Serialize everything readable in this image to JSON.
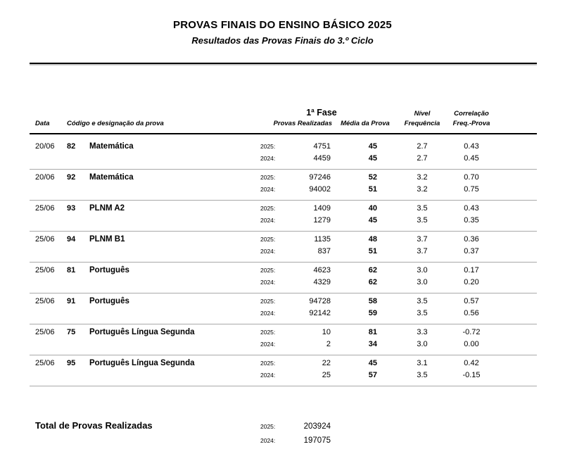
{
  "title": "PROVAS FINAIS DO ENSINO BÁSICO 2025",
  "subtitle": "Resultados das Provas Finais do 3.º Ciclo",
  "colors": {
    "text": "#000000",
    "separator": "#a9a9a9"
  },
  "table": {
    "headers": {
      "fase": "1ª Fase",
      "data": "Data",
      "codigo": "Código e designação da prova",
      "provas": "Provas Realizadas",
      "media": "Média da Prova",
      "nivel_line1": "Nível",
      "nivel_line2": "Frequência",
      "corr_line1": "Correlação",
      "corr_line2": "Freq.-Prova"
    },
    "rows": [
      {
        "date": "20/06",
        "code": "82",
        "name": "Matemática",
        "y2025": {
          "label": "2025:",
          "provas": "4751",
          "media": "45",
          "nivel": "2.7",
          "corr": "0.43"
        },
        "y2024": {
          "label": "2024:",
          "provas": "4459",
          "media": "45",
          "nivel": "2.7",
          "corr": "0.45"
        }
      },
      {
        "date": "20/06",
        "code": "92",
        "name": "Matemática",
        "y2025": {
          "label": "2025:",
          "provas": "97246",
          "media": "52",
          "nivel": "3.2",
          "corr": "0.70"
        },
        "y2024": {
          "label": "2024:",
          "provas": "94002",
          "media": "51",
          "nivel": "3.2",
          "corr": "0.75"
        }
      },
      {
        "date": "25/06",
        "code": "93",
        "name": "PLNM A2",
        "y2025": {
          "label": "2025:",
          "provas": "1409",
          "media": "40",
          "nivel": "3.5",
          "corr": "0.43"
        },
        "y2024": {
          "label": "2024:",
          "provas": "1279",
          "media": "45",
          "nivel": "3.5",
          "corr": "0.35"
        }
      },
      {
        "date": "25/06",
        "code": "94",
        "name": "PLNM B1",
        "y2025": {
          "label": "2025:",
          "provas": "1135",
          "media": "48",
          "nivel": "3.7",
          "corr": "0.36"
        },
        "y2024": {
          "label": "2024:",
          "provas": "837",
          "media": "51",
          "nivel": "3.7",
          "corr": "0.37"
        }
      },
      {
        "date": "25/06",
        "code": "81",
        "name": "Português",
        "y2025": {
          "label": "2025:",
          "provas": "4623",
          "media": "62",
          "nivel": "3.0",
          "corr": "0.17"
        },
        "y2024": {
          "label": "2024:",
          "provas": "4329",
          "media": "62",
          "nivel": "3.0",
          "corr": "0.20"
        }
      },
      {
        "date": "25/06",
        "code": "91",
        "name": "Português",
        "y2025": {
          "label": "2025:",
          "provas": "94728",
          "media": "58",
          "nivel": "3.5",
          "corr": "0.57"
        },
        "y2024": {
          "label": "2024:",
          "provas": "92142",
          "media": "59",
          "nivel": "3.5",
          "corr": "0.56"
        }
      },
      {
        "date": "25/06",
        "code": "75",
        "name": "Português Língua Segunda",
        "y2025": {
          "label": "2025:",
          "provas": "10",
          "media": "81",
          "nivel": "3.3",
          "corr": "-0.72"
        },
        "y2024": {
          "label": "2024:",
          "provas": "2",
          "media": "34",
          "nivel": "3.0",
          "corr": "0.00"
        }
      },
      {
        "date": "25/06",
        "code": "95",
        "name": "Português Língua Segunda",
        "y2025": {
          "label": "2025:",
          "provas": "22",
          "media": "45",
          "nivel": "3.1",
          "corr": "0.42"
        },
        "y2024": {
          "label": "2024:",
          "provas": "25",
          "media": "57",
          "nivel": "3.5",
          "corr": "-0.15"
        }
      }
    ]
  },
  "total": {
    "label": "Total de Provas Realizadas",
    "y2025": {
      "label": "2025:",
      "value": "203924"
    },
    "y2024": {
      "label": "2024:",
      "value": "197075"
    }
  }
}
